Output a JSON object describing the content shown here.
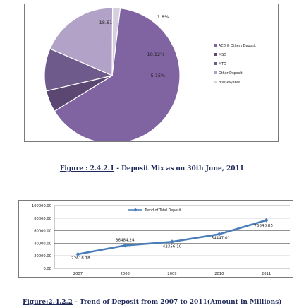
{
  "figure1": {
    "caption_label": "Figure : 2.4.2.1",
    "caption_text": "- Deposit Mix as on 30th June, 2011",
    "chart_data": {
      "type": "pie",
      "series": [
        {
          "name": "ACD & Others Deposit",
          "value": 64.25,
          "label": "64.25%",
          "color": "#8064a2"
        },
        {
          "name": "MSD",
          "value": 5.15,
          "label": "5.15%",
          "color": "#5b4772"
        },
        {
          "name": "MTD",
          "value": 10.12,
          "label": "10.12%",
          "color": "#6f5a8c"
        },
        {
          "name": "Other Deposit",
          "value": 18.61,
          "label": "18.61%",
          "color": "#b3a2c7"
        },
        {
          "name": "Bills Payable",
          "value": 1.8,
          "label": "1.8%",
          "color": "#d6cfe2"
        }
      ],
      "legend_position": "right"
    }
  },
  "figure2": {
    "caption_label": "Figure:2.4.2.2",
    "caption_text": "- Trend of Deposit from 2007 to 2011(Amount in Millions)",
    "chart_data": {
      "type": "line",
      "x": [
        "2007",
        "2008",
        "2009",
        "2010",
        "2011"
      ],
      "series": [
        {
          "name": "Trend of Total Deposit",
          "values": [
            22618.18,
            36484.24,
            42356.1,
            54447.01,
            76648.85
          ],
          "color": "#4a7ebb"
        }
      ],
      "data_labels": [
        "22618.18",
        "36484.24",
        "42356.10",
        "54447.01",
        "76648.85"
      ],
      "yticks": [
        "100000.00",
        "80000.00",
        "60000.00",
        "40000.00",
        "20000.00",
        "0.00"
      ],
      "ylim": [
        0,
        100000
      ],
      "legend_position": "top",
      "grid": true
    }
  }
}
